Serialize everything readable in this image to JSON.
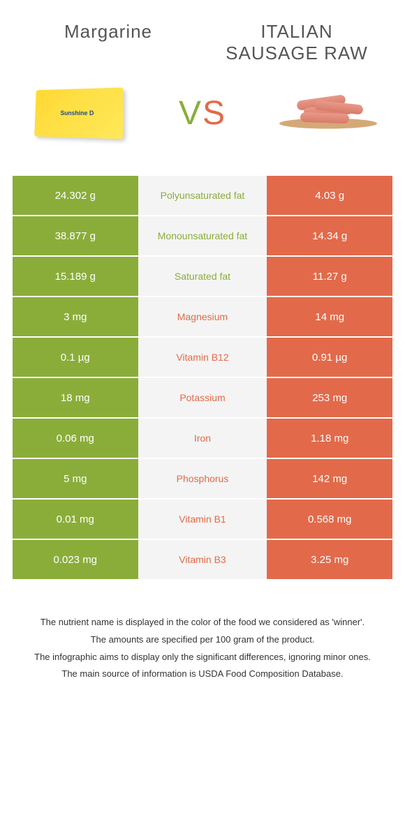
{
  "foods": {
    "left": {
      "name": "Margarine",
      "color": "#8aad3a"
    },
    "right": {
      "name": "ITALIAN SAUSAGE RAW",
      "color": "#e26a4a"
    }
  },
  "vs_label": {
    "v": "V",
    "s": "S"
  },
  "rows": [
    {
      "left": "24.302 g",
      "label": "Polyunsaturated fat",
      "right": "4.03 g",
      "winner": "left"
    },
    {
      "left": "38.877 g",
      "label": "Monounsaturated fat",
      "right": "14.34 g",
      "winner": "left"
    },
    {
      "left": "15.189 g",
      "label": "Saturated fat",
      "right": "11.27 g",
      "winner": "left"
    },
    {
      "left": "3 mg",
      "label": "Magnesium",
      "right": "14 mg",
      "winner": "right"
    },
    {
      "left": "0.1 µg",
      "label": "Vitamin B12",
      "right": "0.91 µg",
      "winner": "right"
    },
    {
      "left": "18 mg",
      "label": "Potassium",
      "right": "253 mg",
      "winner": "right"
    },
    {
      "left": "0.06 mg",
      "label": "Iron",
      "right": "1.18 mg",
      "winner": "right"
    },
    {
      "left": "5 mg",
      "label": "Phosphorus",
      "right": "142 mg",
      "winner": "right"
    },
    {
      "left": "0.01 mg",
      "label": "Vitamin B1",
      "right": "0.568 mg",
      "winner": "right"
    },
    {
      "left": "0.023 mg",
      "label": "Vitamin B3",
      "right": "3.25 mg",
      "winner": "right"
    }
  ],
  "footer": {
    "line1": "The nutrient name is displayed in the color of the food we considered as 'winner'.",
    "line2": "The amounts are specified per 100 gram of the product.",
    "line3": "The infographic aims to display only the significant differences, ignoring minor ones.",
    "line4": "The main source of information is USDA Food Composition Database."
  },
  "colors": {
    "left_bg": "#8aad3a",
    "right_bg": "#e26a4a",
    "mid_bg": "#f4f4f4",
    "page_bg": "#ffffff"
  }
}
